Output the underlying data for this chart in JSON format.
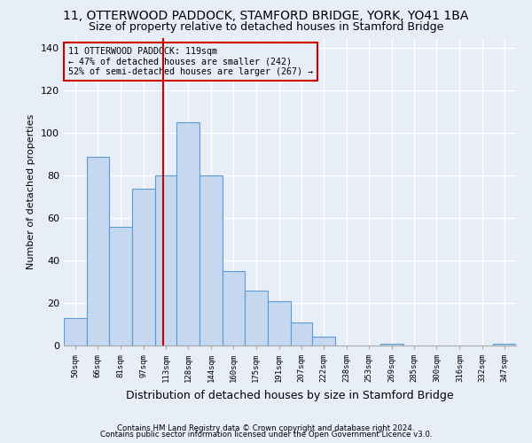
{
  "title_line1": "11, OTTERWOOD PADDOCK, STAMFORD BRIDGE, YORK, YO41 1BA",
  "title_line2": "Size of property relative to detached houses in Stamford Bridge",
  "xlabel": "Distribution of detached houses by size in Stamford Bridge",
  "ylabel": "Number of detached properties",
  "footnote1": "Contains HM Land Registry data © Crown copyright and database right 2024.",
  "footnote2": "Contains public sector information licensed under the Open Government Licence v3.0.",
  "bin_edges": [
    50,
    66,
    81,
    97,
    113,
    128,
    144,
    160,
    175,
    191,
    207,
    222,
    238,
    253,
    269,
    285,
    300,
    316,
    332,
    347,
    363
  ],
  "bar_heights": [
    13,
    89,
    56,
    74,
    80,
    105,
    80,
    35,
    26,
    21,
    11,
    4,
    0,
    0,
    1,
    0,
    0,
    0,
    0,
    1
  ],
  "bar_color": "#c5d8f0",
  "bar_edge_color": "#5b9bd5",
  "property_size": 119,
  "vline_color": "#cc0000",
  "annotation_line1": "11 OTTERWOOD PADDOCK: 119sqm",
  "annotation_line2": "← 47% of detached houses are smaller (242)",
  "annotation_line3": "52% of semi-detached houses are larger (267) →",
  "annotation_box_color": "#cc0000",
  "ylim": [
    0,
    145
  ],
  "yticks": [
    0,
    20,
    40,
    60,
    80,
    100,
    120,
    140
  ],
  "background_color": "#e8eef7",
  "grid_color": "#ffffff",
  "title_fontsize": 10,
  "subtitle_fontsize": 9
}
